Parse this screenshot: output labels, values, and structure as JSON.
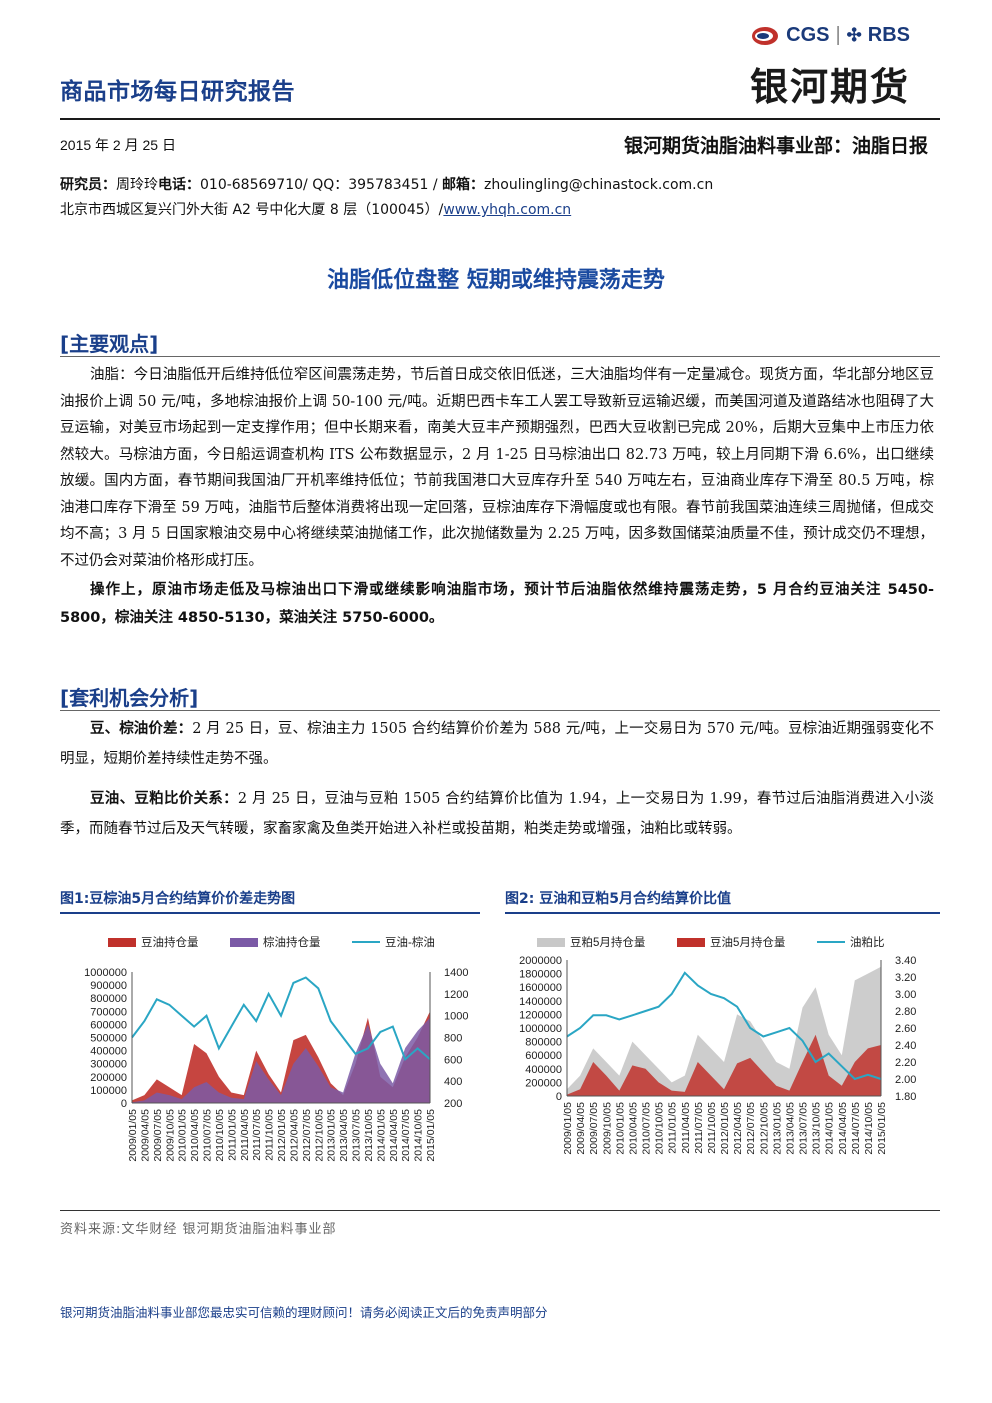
{
  "header": {
    "report_title": "商品市场每日研究报告",
    "logo_left": "CGS",
    "logo_right": "RBS",
    "logo_cn": "银河期货"
  },
  "meta": {
    "date": "2015 年 2 月 25 日",
    "department": "银河期货油脂油料事业部：油脂日报",
    "contact_line1_label": "研究员：",
    "contact_line1_name": "周玲玲",
    "contact_line1_phone_label": "电话：",
    "contact_line1_phone": "010-68569710/ QQ：395783451 / ",
    "contact_line1_email_label": "邮箱：",
    "contact_line1_email": "zhoulingling@chinastock.com.cn",
    "address": "北京市西城区复兴门外大街 A2 号中化大厦 8 层（100045）/",
    "website": "www.yhqh.com.cn"
  },
  "main_title": "油脂低位盘整 短期或维持震荡走势",
  "section1": {
    "heading": "[主要观点]",
    "paragraph": "油脂：今日油脂低开后维持低位窄区间震荡走势，节后首日成交依旧低迷，三大油脂均伴有一定量减仓。现货方面，华北部分地区豆油报价上调 50 元/吨，多地棕油报价上调 50-100 元/吨。近期巴西卡车工人罢工导致新豆运输迟缓，而美国河道及道路结冰也阻碍了大豆运输，对美豆市场起到一定支撑作用；但中长期来看，南美大豆丰产预期强烈，巴西大豆收割已完成 20%，后期大豆集中上市压力依然较大。马棕油方面，今日船运调查机构 ITS 公布数据显示，2 月 1-25 日马棕油出口 82.73 万吨，较上月同期下滑 6.6%，出口继续放缓。国内方面，春节期间我国油厂开机率维持低位；节前我国港口大豆库存升至 540 万吨左右，豆油商业库存下滑至 80.5 万吨，棕油港口库存下滑至 59 万吨，油脂节后整体消费将出现一定回落，豆棕油库存下滑幅度或也有限。春节前我国菜油连续三周抛储，但成交均不高；3 月 5 日国家粮油交易中心将继续菜油抛储工作，此次抛储数量为 2.25 万吨，因多数国储菜油质量不佳，预计成交仍不理想，不过仍会对菜油价格形成打压。",
    "operation": "操作上，原油市场走低及马棕油出口下滑或继续影响油脂市场，预计节后油脂依然维持震荡走势，5 月合约豆油关注 5450-5800，棕油关注 4850-5130，菜油关注 5750-6000。"
  },
  "section2": {
    "heading": "[套利机会分析]",
    "p1_label": "豆、棕油价差：",
    "p1_text": "2 月 25 日，豆、棕油主力 1505 合约结算价价差为 588 元/吨，上一交易日为 570 元/吨。豆棕油近期强弱变化不明显，短期价差持续性走势不强。",
    "p2_label": "豆油、豆粕比价关系：",
    "p2_text": "2 月 25 日，豆油与豆粕 1505 合约结算价比值为 1.94，上一交易日为 1.99，春节过后油脂消费进入小淡季，而随春节过后及天气转暖，家畜家禽及鱼类开始进入补栏或投苗期，粕类走势或增强，油粕比或转弱。"
  },
  "figures": {
    "fig1_caption": "图1:豆棕油5月合约结算价价差走势图",
    "fig2_caption": "图2:  豆油和豆粕5月合约结算价比值",
    "source": "资料来源:文华财经    银河期货油脂油料事业部"
  },
  "chart_data": [
    {
      "type": "area",
      "title": "",
      "legend": [
        "豆油持仓量",
        "棕油持仓量",
        "豆油-棕油"
      ],
      "x_ticks": [
        "2009/01/05",
        "2009/04/05",
        "2009/07/05",
        "2009/10/05",
        "2010/01/05",
        "2010/04/05",
        "2010/07/05",
        "2010/10/05",
        "2011/01/05",
        "2011/04/05",
        "2011/07/05",
        "2011/10/05",
        "2012/01/05",
        "2012/04/05",
        "2012/07/05",
        "2012/10/05",
        "2013/01/05",
        "2013/04/05",
        "2013/07/05",
        "2013/10/05",
        "2014/01/05",
        "2014/04/05",
        "2014/07/05",
        "2014/10/05",
        "2015/01/05"
      ],
      "y_left_ticks": [
        "0",
        "100000",
        "200000",
        "300000",
        "400000",
        "500000",
        "600000",
        "700000",
        "800000",
        "900000",
        "1000000"
      ],
      "y_right_ticks": [
        "200",
        "400",
        "600",
        "800",
        "1000",
        "1200",
        "1400"
      ],
      "ylim_left": [
        0,
        1000000
      ],
      "ylim_right": [
        200,
        1400
      ],
      "colors": {
        "soy_oi": "#c0312b",
        "palm_oi": "#7b5aa6",
        "spread": "#2aa6c4"
      },
      "series": [
        {
          "name": "豆油持仓量",
          "axis": "left",
          "values": [
            20000,
            60000,
            180000,
            120000,
            60000,
            450000,
            380000,
            200000,
            80000,
            60000,
            400000,
            220000,
            80000,
            480000,
            520000,
            350000,
            150000,
            60000,
            300000,
            650000,
            200000,
            120000,
            350000,
            500000,
            700000
          ]
        },
        {
          "name": "棕油持仓量",
          "axis": "left",
          "values": [
            5000,
            20000,
            80000,
            60000,
            30000,
            120000,
            160000,
            80000,
            40000,
            30000,
            320000,
            180000,
            60000,
            300000,
            420000,
            280000,
            120000,
            80000,
            380000,
            600000,
            300000,
            150000,
            420000,
            550000,
            650000
          ]
        },
        {
          "name": "豆油-棕油",
          "axis": "right",
          "values": [
            800,
            950,
            1150,
            1100,
            1000,
            900,
            1000,
            700,
            900,
            1100,
            950,
            1200,
            1000,
            1300,
            1350,
            1250,
            950,
            800,
            650,
            700,
            850,
            900,
            600,
            700,
            600
          ]
        }
      ]
    },
    {
      "type": "area",
      "title": "",
      "legend": [
        "豆粕5月持仓量",
        "豆油5月持仓量",
        "油粕比"
      ],
      "x_ticks": [
        "2009/01/05",
        "2009/04/05",
        "2009/07/05",
        "2009/10/05",
        "2010/01/05",
        "2010/04/05",
        "2010/07/05",
        "2010/10/05",
        "2011/01/05",
        "2011/04/05",
        "2011/07/05",
        "2011/10/05",
        "2012/01/05",
        "2012/04/05",
        "2012/07/05",
        "2012/10/05",
        "2013/01/05",
        "2013/04/05",
        "2013/07/05",
        "2013/10/05",
        "2014/01/05",
        "2014/04/05",
        "2014/07/05",
        "2014/10/05",
        "2015/01/05"
      ],
      "y_left_ticks": [
        "0",
        "200000",
        "400000",
        "600000",
        "800000",
        "1000000",
        "1200000",
        "1400000",
        "1600000",
        "1800000",
        "2000000"
      ],
      "y_right_ticks": [
        "1.80",
        "2.00",
        "2.20",
        "2.40",
        "2.60",
        "2.80",
        "3.00",
        "3.20",
        "3.40"
      ],
      "ylim_left": [
        0,
        2000000
      ],
      "ylim_right": [
        1.8,
        3.4
      ],
      "colors": {
        "meal_oi": "#c8c8c8",
        "soyoil_oi": "#c0312b",
        "ratio": "#2aa6c4"
      },
      "series": [
        {
          "name": "豆粕5月持仓量",
          "axis": "left",
          "values": [
            100000,
            300000,
            700000,
            500000,
            300000,
            800000,
            600000,
            400000,
            200000,
            300000,
            900000,
            700000,
            500000,
            1200000,
            1100000,
            800000,
            500000,
            400000,
            1300000,
            1600000,
            900000,
            600000,
            1700000,
            1800000,
            1900000
          ]
        },
        {
          "name": "豆油5月持仓量",
          "axis": "left",
          "values": [
            20000,
            100000,
            500000,
            300000,
            80000,
            450000,
            400000,
            200000,
            80000,
            60000,
            500000,
            300000,
            100000,
            480000,
            560000,
            350000,
            150000,
            80000,
            500000,
            900000,
            300000,
            150000,
            500000,
            700000,
            750000
          ]
        },
        {
          "name": "油粕比",
          "axis": "right",
          "values": [
            2.5,
            2.6,
            2.75,
            2.75,
            2.7,
            2.75,
            2.8,
            2.85,
            3.0,
            3.25,
            3.1,
            3.0,
            2.95,
            2.85,
            2.6,
            2.5,
            2.55,
            2.6,
            2.45,
            2.2,
            2.3,
            2.15,
            2.0,
            2.05,
            2.0
          ]
        }
      ]
    }
  ],
  "footer": {
    "disclaimer": "银河期货油脂油料事业部您最忠实可信赖的理财顾问！请务必阅读正文后的免责声明部分"
  }
}
